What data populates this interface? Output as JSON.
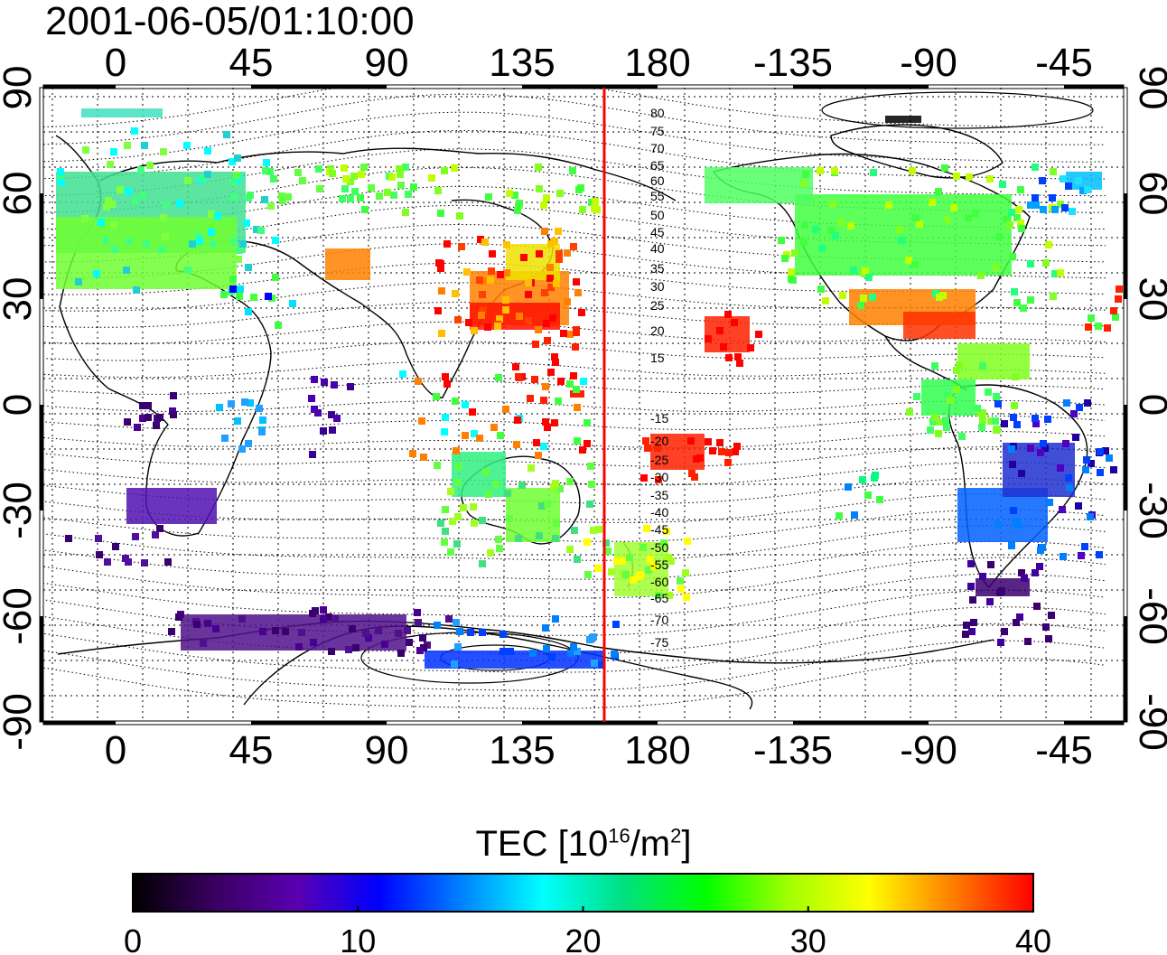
{
  "title": "2001-06-05/01:10:00",
  "map": {
    "lon_ticks": [
      "0",
      "45",
      "90",
      "135",
      "180",
      "-135",
      "-90",
      "-45"
    ],
    "lat_ticks": [
      "90",
      "60",
      "30",
      "0",
      "-30",
      "-60",
      "-90"
    ],
    "contour_labels": [
      "80",
      "75",
      "70",
      "65",
      "60",
      "55",
      "50",
      "45",
      "40",
      "35",
      "30",
      "25",
      "20",
      "15",
      "-15",
      "-20",
      "-25",
      "-30",
      "-35",
      "-40",
      "-45",
      "-50",
      "-55",
      "-60",
      "-65",
      "-70",
      "-75"
    ],
    "marker_line_color": "#ff0000"
  },
  "colorbar": {
    "title_main": "TEC  [10",
    "title_exp1": "16",
    "title_mid": "/m",
    "title_exp2": "2",
    "title_end": "]",
    "ticks": [
      "0",
      "10",
      "20",
      "30",
      "40"
    ],
    "colors": [
      "#000000",
      "#3a0060",
      "#5a00b0",
      "#0000ff",
      "#0080ff",
      "#00ffff",
      "#00e080",
      "#00ff00",
      "#a0ff00",
      "#ffff00",
      "#ff8000",
      "#ff0000"
    ]
  }
}
